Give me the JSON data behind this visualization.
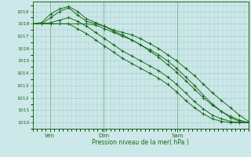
{
  "bg_color": "#cce8e8",
  "grid_color": "#aacccc",
  "line_color": "#1a6b1a",
  "ylim": [
    1009.5,
    1019.8
  ],
  "yticks": [
    1010,
    1011,
    1012,
    1013,
    1014,
    1015,
    1016,
    1017,
    1018,
    1019
  ],
  "xlabel": "Pression niveau de la mer( hPa )",
  "xtick_labels": [
    "Ven",
    "Dim",
    "Sam"
  ],
  "xtick_positions": [
    0.08,
    0.33,
    0.67
  ],
  "series": [
    [
      1018.0,
      1018.0,
      1018.5,
      1019.0,
      1019.3,
      1018.7,
      1018.2,
      1018.0,
      1017.8,
      1017.5,
      1017.3,
      1017.1,
      1016.8,
      1016.4,
      1016.0,
      1015.5,
      1015.0,
      1014.4,
      1013.8,
      1013.1,
      1012.4,
      1011.8,
      1011.2,
      1010.6,
      1010.1
    ],
    [
      1018.0,
      1018.1,
      1018.8,
      1019.2,
      1019.4,
      1019.0,
      1018.4,
      1018.1,
      1017.8,
      1017.4,
      1017.1,
      1016.7,
      1016.3,
      1015.8,
      1015.3,
      1014.7,
      1014.1,
      1013.4,
      1012.7,
      1012.0,
      1011.4,
      1010.9,
      1010.5,
      1010.2,
      1010.0
    ],
    [
      1018.0,
      1018.0,
      1018.0,
      1018.0,
      1018.0,
      1018.0,
      1018.0,
      1017.9,
      1017.6,
      1017.3,
      1017.0,
      1016.7,
      1016.3,
      1015.9,
      1015.5,
      1015.0,
      1014.4,
      1013.7,
      1013.0,
      1012.2,
      1011.5,
      1010.9,
      1010.4,
      1010.1,
      1010.0
    ],
    [
      1018.0,
      1018.0,
      1018.1,
      1018.3,
      1018.5,
      1018.2,
      1017.8,
      1017.3,
      1016.8,
      1016.3,
      1015.8,
      1015.4,
      1015.0,
      1014.6,
      1014.2,
      1013.7,
      1013.1,
      1012.4,
      1011.7,
      1011.1,
      1010.6,
      1010.3,
      1010.1,
      1010.0,
      1010.0
    ],
    [
      1018.0,
      1018.0,
      1018.0,
      1018.0,
      1018.0,
      1017.6,
      1017.2,
      1016.7,
      1016.2,
      1015.7,
      1015.2,
      1014.8,
      1014.4,
      1014.0,
      1013.6,
      1013.1,
      1012.5,
      1011.8,
      1011.2,
      1010.7,
      1010.3,
      1010.1,
      1010.0,
      1010.0,
      1010.0
    ]
  ]
}
